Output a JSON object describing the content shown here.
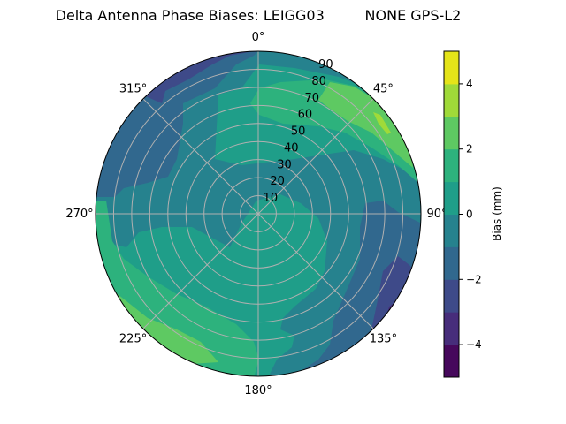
{
  "chart_data": {
    "type": "polar-contour",
    "title": "Delta Antenna Phase Biases: LEIGG03         NONE GPS-L2",
    "angular_ticks": [
      "0°",
      "45°",
      "90°",
      "135°",
      "180°",
      "225°",
      "270°",
      "315°"
    ],
    "radial_ticks": [
      "10",
      "20",
      "30",
      "40",
      "50",
      "60",
      "70",
      "80",
      "90"
    ],
    "radial_range": [
      0,
      90
    ],
    "grid": true,
    "colorbar": {
      "label": "Bias (mm)",
      "range": [
        -5,
        5
      ],
      "ticks": [
        "4",
        "2",
        "0",
        "−2",
        "−4"
      ],
      "levels": [
        -5,
        -4,
        -3,
        -2,
        -1,
        0,
        1,
        2,
        3,
        4,
        5
      ],
      "colormap": "viridis",
      "colors": [
        "#46085c",
        "#472d7b",
        "#3e4a89",
        "#31688e",
        "#26828e",
        "#1f9e89",
        "#2db27d",
        "#5ec962",
        "#a0da39",
        "#e5e419"
      ]
    }
  }
}
